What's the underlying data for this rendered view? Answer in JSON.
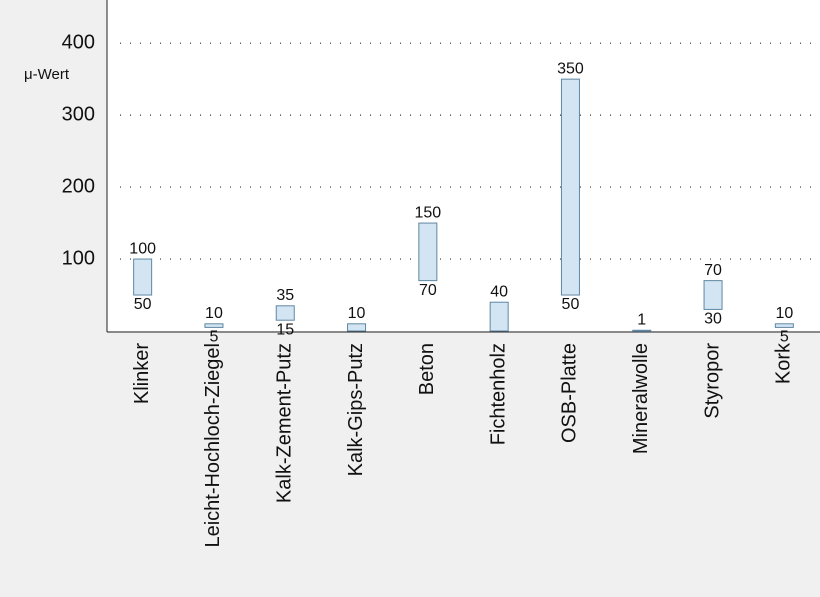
{
  "chart_data": {
    "type": "range-bar",
    "y_label": "μ-Wert",
    "categories": [
      "Klinker",
      "Leicht-Hochloch-Ziegel",
      "Kalk-Zement-Putz",
      "Kalk-Gips-Putz",
      "Beton",
      "Fichtenholz",
      "OSB-Platte",
      "Mineralwolle",
      "Styropor",
      "Kork"
    ],
    "low": [
      50,
      5,
      15,
      null,
      70,
      null,
      50,
      null,
      30,
      5
    ],
    "high": [
      100,
      10,
      35,
      10,
      150,
      40,
      350,
      1,
      70,
      10
    ],
    "color": "#d3e5f3",
    "edge_color": "#5f87a3",
    "ylim": [
      0,
      460
    ],
    "yticks": [
      100,
      200,
      300,
      400
    ],
    "grid": true
  }
}
